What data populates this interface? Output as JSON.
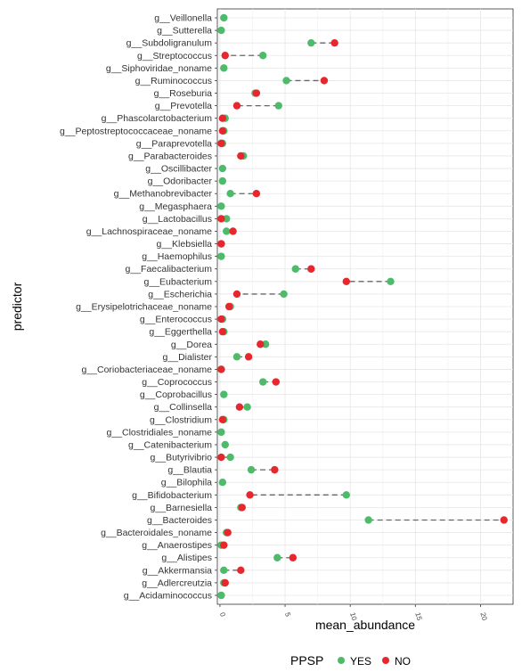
{
  "chart_data": {
    "type": "dumbbell",
    "xlabel": "mean_abundance",
    "ylabel": "predictor",
    "xlim": [
      -0.2,
      22.5
    ],
    "x_ticks": [
      0,
      5,
      10,
      15,
      20
    ],
    "x_tick_labels": [
      "0",
      "5",
      "10",
      "15",
      "20"
    ],
    "grid": true,
    "legend": {
      "title": "PPSP",
      "position": "bottom",
      "entries": [
        {
          "label": "YES",
          "color": "#4dbb6a"
        },
        {
          "label": "NO",
          "color": "#e8262d"
        }
      ]
    },
    "categories": [
      "g__Veillonella",
      "g__Sutterella",
      "g__Subdoligranulum",
      "g__Streptococcus",
      "g__Siphoviridae_noname",
      "g__Ruminococcus",
      "g__Roseburia",
      "g__Prevotella",
      "g__Phascolarctobacterium",
      "g__Peptostreptococcaceae_noname",
      "g__Paraprevotella",
      "g__Parabacteroides",
      "g__Oscillibacter",
      "g__Odoribacter",
      "g__Methanobrevibacter",
      "g__Megasphaera",
      "g__Lactobacillus",
      "g__Lachnospiraceae_noname",
      "g__Klebsiella",
      "g__Haemophilus",
      "g__Faecalibacterium",
      "g__Eubacterium",
      "g__Escherichia",
      "g__Erysipelotrichaceae_noname",
      "g__Enterococcus",
      "g__Eggerthella",
      "g__Dorea",
      "g__Dialister",
      "g__Coriobacteriaceae_noname",
      "g__Coprococcus",
      "g__Coprobacillus",
      "g__Collinsella",
      "g__Clostridium",
      "g__Clostridiales_noname",
      "g__Catenibacterium",
      "g__Butyrivibrio",
      "g__Blautia",
      "g__Bilophila",
      "g__Bifidobacterium",
      "g__Barnesiella",
      "g__Bacteroides",
      "g__Bacteroidales_noname",
      "g__Anaerostipes",
      "g__Alistipes",
      "g__Akkermansia",
      "g__Adlercreutzia",
      "g__Acidaminococcus"
    ],
    "series": [
      {
        "name": "YES",
        "color": "#4dbb6a",
        "values": [
          0.3,
          0.1,
          7.0,
          3.3,
          0.3,
          5.1,
          2.7,
          4.5,
          0.4,
          0.3,
          0.2,
          1.8,
          0.2,
          0.2,
          0.8,
          0.1,
          0.5,
          0.5,
          0.1,
          0.1,
          5.8,
          13.1,
          4.9,
          0.8,
          0.2,
          0.3,
          3.5,
          1.3,
          0.1,
          3.3,
          0.3,
          2.1,
          0.3,
          0.1,
          0.4,
          0.8,
          2.4,
          0.2,
          9.7,
          1.6,
          11.4,
          0.5,
          0.1,
          4.4,
          0.3,
          0.3,
          0.1
        ]
      },
      {
        "name": "NO",
        "color": "#e8262d",
        "values": [
          null,
          null,
          8.8,
          0.4,
          null,
          8.0,
          2.8,
          1.3,
          0.2,
          0.2,
          0.1,
          1.6,
          null,
          null,
          2.8,
          null,
          0.1,
          1.0,
          0.1,
          null,
          7.0,
          9.7,
          1.3,
          0.7,
          0.1,
          0.2,
          3.1,
          2.2,
          0.1,
          4.3,
          null,
          1.5,
          0.2,
          null,
          null,
          0.1,
          4.2,
          null,
          2.3,
          1.7,
          21.8,
          0.6,
          0.3,
          5.6,
          1.6,
          0.4,
          null
        ]
      }
    ]
  }
}
